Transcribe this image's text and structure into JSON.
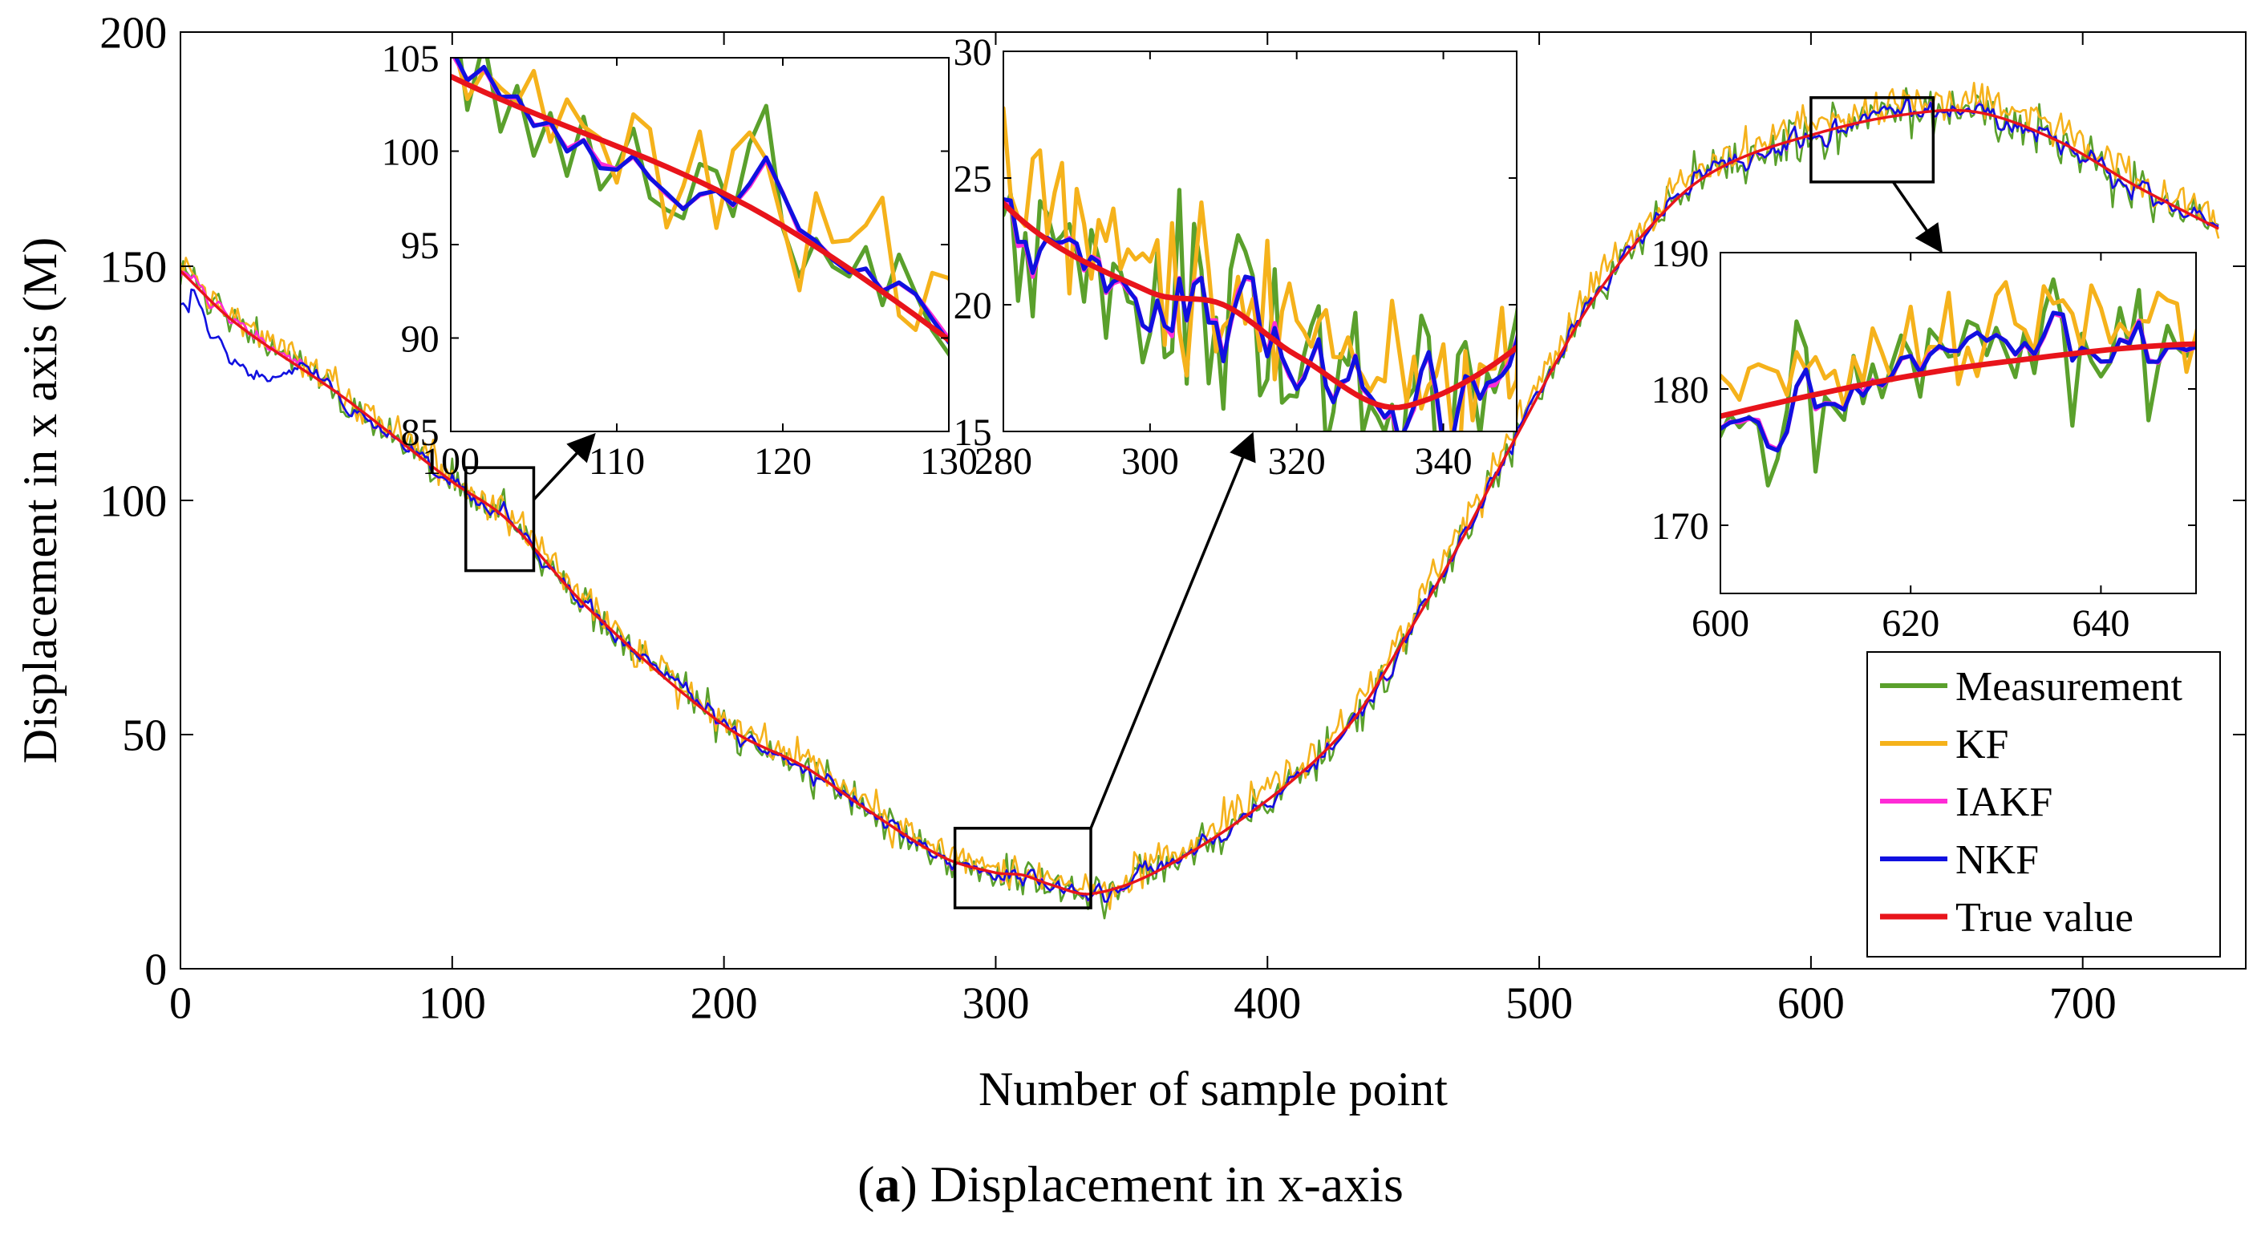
{
  "caption": {
    "letter": "a",
    "text": "Displacement in x-axis"
  },
  "chart_data": [
    {
      "id": "main",
      "type": "line",
      "title": "",
      "xlabel": "Number of sample point",
      "ylabel": "Displacement in x axis (M)",
      "xlim": [
        0,
        760
      ],
      "ylim": [
        0,
        200
      ],
      "xticks": [
        0,
        100,
        200,
        300,
        400,
        500,
        600,
        700
      ],
      "yticks": [
        0,
        50,
        100,
        150,
        200
      ],
      "legend": {
        "placement": "bottom-right",
        "entries": [
          "Measurement",
          "KF",
          "IAKF",
          "NKF",
          "True value"
        ]
      },
      "series_colors": {
        "Measurement": "#5aa02c",
        "KF": "#f5b21b",
        "IAKF": "#ff2bd6",
        "NKF": "#1010e0",
        "True value": "#e8141b"
      },
      "true_value_knots": [
        [
          0,
          149
        ],
        [
          20,
          138
        ],
        [
          60,
          122
        ],
        [
          100,
          104
        ],
        [
          120,
          96
        ],
        [
          150,
          77
        ],
        [
          200,
          52
        ],
        [
          230,
          43
        ],
        [
          250,
          35
        ],
        [
          280,
          24
        ],
        [
          300,
          20.5
        ],
        [
          310,
          20
        ],
        [
          320,
          18
        ],
        [
          335,
          16
        ],
        [
          360,
          21
        ],
        [
          400,
          36
        ],
        [
          430,
          52
        ],
        [
          450,
          70
        ],
        [
          470,
          90
        ],
        [
          490,
          112
        ],
        [
          520,
          143
        ],
        [
          550,
          164
        ],
        [
          570,
          172
        ],
        [
          600,
          178
        ],
        [
          630,
          182
        ],
        [
          660,
          183
        ],
        [
          690,
          177
        ],
        [
          720,
          167
        ],
        [
          750,
          158
        ]
      ],
      "zoom_boxes": [
        {
          "x": [
            105,
            130
          ],
          "y": [
            85,
            107
          ]
        },
        {
          "x": [
            285,
            335
          ],
          "y": [
            13,
            30
          ]
        },
        {
          "x": [
            600,
            645
          ],
          "y": [
            168,
            186
          ]
        }
      ]
    },
    {
      "id": "inset1",
      "type": "line",
      "xlim": [
        100,
        130
      ],
      "ylim": [
        85,
        105
      ],
      "xticks": [
        100,
        110,
        120,
        130
      ],
      "yticks": [
        85,
        90,
        95,
        100,
        105
      ]
    },
    {
      "id": "inset2",
      "type": "line",
      "xlim": [
        280,
        350
      ],
      "ylim": [
        15,
        30
      ],
      "xticks": [
        280,
        300,
        320,
        340
      ],
      "yticks": [
        15,
        20,
        25,
        30
      ]
    },
    {
      "id": "inset3",
      "type": "line",
      "xlim": [
        600,
        650
      ],
      "ylim": [
        165,
        190
      ],
      "xticks": [
        600,
        620,
        640
      ],
      "yticks": [
        170,
        180,
        190
      ]
    }
  ]
}
